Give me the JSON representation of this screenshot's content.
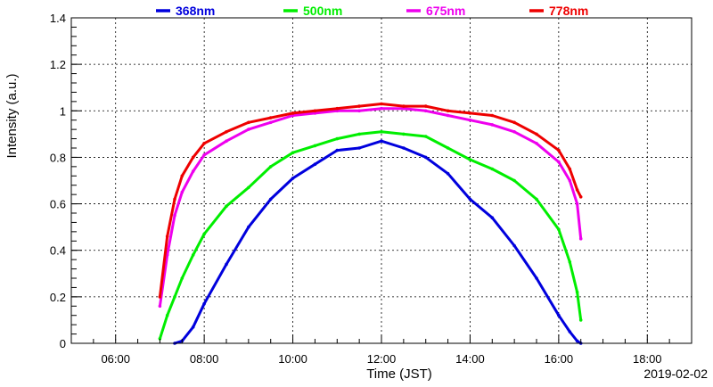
{
  "chart_data": {
    "type": "line",
    "xlabel": "Time (JST)",
    "ylabel": "Intensity (a.u.)",
    "date": "2019-02-02",
    "xlim": [
      "05:00",
      "19:00"
    ],
    "ylim": [
      0,
      1.4
    ],
    "x_ticks": [
      "06:00",
      "08:00",
      "10:00",
      "12:00",
      "14:00",
      "16:00",
      "18:00"
    ],
    "y_ticks": [
      "0",
      "0.2",
      "0.4",
      "0.6",
      "0.8",
      "1",
      "1.2",
      "1.4"
    ],
    "grid": true,
    "legend_position": "top",
    "x": [
      "07:00",
      "07:10",
      "07:20",
      "07:30",
      "07:45",
      "08:00",
      "08:30",
      "09:00",
      "09:30",
      "10:00",
      "10:30",
      "11:00",
      "11:30",
      "12:00",
      "12:30",
      "13:00",
      "13:30",
      "14:00",
      "14:30",
      "15:00",
      "15:30",
      "16:00",
      "16:15",
      "16:25",
      "16:30"
    ],
    "series": [
      {
        "name": "368nm",
        "color": "#0000dd",
        "values": [
          null,
          null,
          0.0,
          0.01,
          0.07,
          0.17,
          0.34,
          0.5,
          0.62,
          0.71,
          0.77,
          0.83,
          0.84,
          0.87,
          0.84,
          0.8,
          0.73,
          0.62,
          0.54,
          0.42,
          0.28,
          0.12,
          0.05,
          0.01,
          0.0
        ]
      },
      {
        "name": "500nm",
        "color": "#00ee00",
        "values": [
          0.02,
          0.12,
          0.2,
          0.28,
          0.38,
          0.47,
          0.59,
          0.67,
          0.76,
          0.82,
          0.85,
          0.88,
          0.9,
          0.91,
          0.9,
          0.89,
          0.84,
          0.79,
          0.75,
          0.7,
          0.62,
          0.49,
          0.35,
          0.22,
          0.1
        ]
      },
      {
        "name": "675nm",
        "color": "#ee00ee",
        "values": [
          0.16,
          0.38,
          0.55,
          0.65,
          0.74,
          0.81,
          0.87,
          0.92,
          0.95,
          0.98,
          0.99,
          1.0,
          1.0,
          1.01,
          1.01,
          1.0,
          0.98,
          0.96,
          0.94,
          0.91,
          0.86,
          0.78,
          0.7,
          0.6,
          0.45
        ]
      },
      {
        "name": "778nm",
        "color": "#ee0000",
        "values": [
          0.2,
          0.46,
          0.62,
          0.72,
          0.8,
          0.86,
          0.91,
          0.95,
          0.97,
          0.99,
          1.0,
          1.01,
          1.02,
          1.03,
          1.02,
          1.02,
          1.0,
          0.99,
          0.98,
          0.95,
          0.9,
          0.83,
          0.75,
          0.66,
          0.63
        ]
      }
    ]
  }
}
